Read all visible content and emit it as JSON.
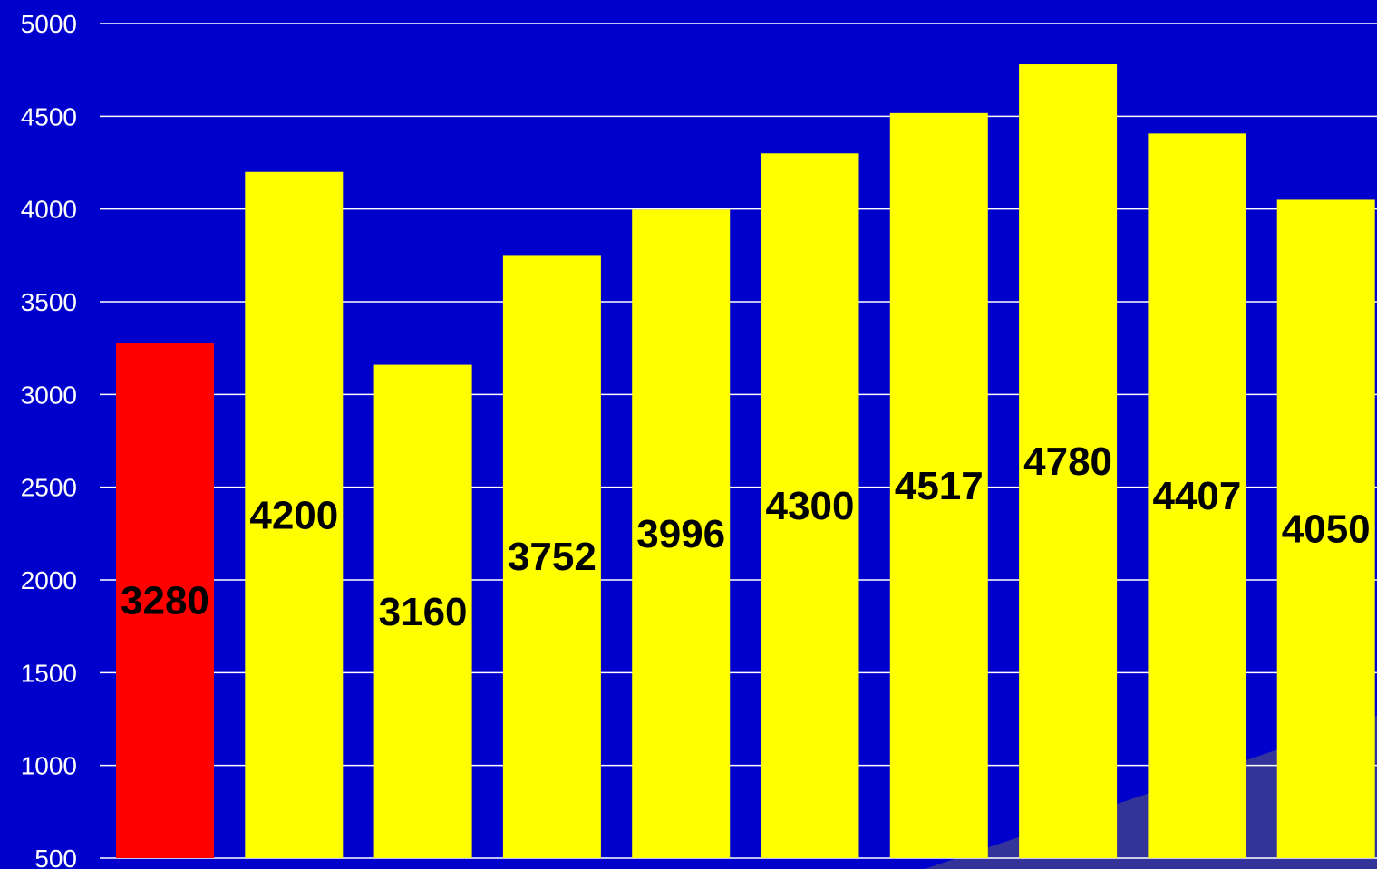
{
  "chart_data": {
    "type": "bar",
    "title": "",
    "xlabel": "",
    "ylabel": "",
    "ylim": [
      500,
      5000
    ],
    "yticks": [
      500,
      1000,
      1500,
      2000,
      2500,
      3000,
      3500,
      4000,
      4500,
      5000
    ],
    "grid": true,
    "legend": "none",
    "values": [
      3280,
      4200,
      3160,
      3752,
      3996,
      4300,
      4517,
      4780,
      4407,
      4050
    ],
    "bar_colors": [
      "#ff0000",
      "#ffff00",
      "#ffff00",
      "#ffff00",
      "#ffff00",
      "#ffff00",
      "#ffff00",
      "#ffff00",
      "#ffff00",
      "#ffff00"
    ],
    "data_labels": [
      "3280",
      "4200",
      "3160",
      "3752",
      "3996",
      "4300",
      "4517",
      "4780",
      "4407",
      "4050"
    ]
  },
  "colors": {
    "background": "#0000cc",
    "gridline": "#ffffff",
    "tick_text": "#ffffff",
    "label_text": "#000000",
    "wedge": "#33339a"
  }
}
